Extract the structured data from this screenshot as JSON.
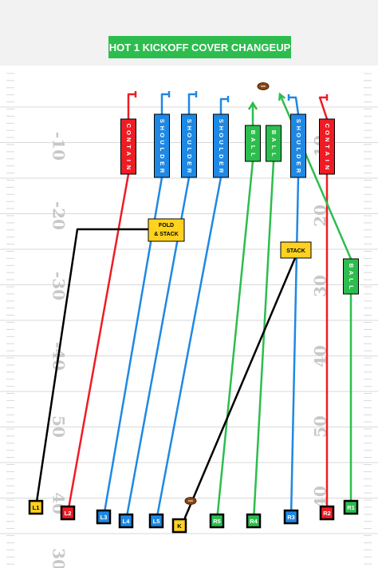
{
  "title": "HOT 1 KICKOFF COVER CHANGEUP",
  "colors": {
    "header_bg": "#f2f2f2",
    "field_bg": "#ffffff",
    "field_lines": "#d9d9d9",
    "yard_numbers": "#c8c8c8",
    "title_bg": "#2dbd4e",
    "title_text": "#ffffff",
    "red": "#ee1c24",
    "blue": "#1e88e5",
    "green": "#2dbd4e",
    "black": "#000000",
    "yellow": "#ffd21f"
  },
  "yard_numbers": {
    "left": [
      "-10",
      "-20",
      "-30",
      "-40",
      "50",
      "40",
      "30"
    ],
    "right": [
      "10",
      "20",
      "30",
      "40",
      "50",
      "40"
    ]
  },
  "footballs": [
    "top-football",
    "kicker-football"
  ],
  "players": [
    {
      "id": "L1",
      "color": "yellow"
    },
    {
      "id": "L2",
      "color": "red"
    },
    {
      "id": "L3",
      "color": "blue"
    },
    {
      "id": "L4",
      "color": "blue"
    },
    {
      "id": "L5",
      "color": "blue"
    },
    {
      "id": "K",
      "color": "yellow"
    },
    {
      "id": "R5",
      "color": "green"
    },
    {
      "id": "R4",
      "color": "green"
    },
    {
      "id": "R3",
      "color": "blue"
    },
    {
      "id": "R2",
      "color": "red"
    },
    {
      "id": "R1",
      "color": "green"
    }
  ],
  "assignments": [
    {
      "player": "L2",
      "label": "CONTAIN",
      "color": "red",
      "end": "tee"
    },
    {
      "player": "L3",
      "label": "SHOULDER",
      "color": "blue",
      "end": "tee"
    },
    {
      "player": "L4",
      "label": "SHOULDER",
      "color": "blue",
      "end": "tee"
    },
    {
      "player": "L5",
      "label": "SHOULDER",
      "color": "blue",
      "end": "tee"
    },
    {
      "player": "R5",
      "label": "BALL",
      "color": "green",
      "end": "arrow"
    },
    {
      "player": "R4",
      "label": "BALL",
      "color": "green",
      "end": "none"
    },
    {
      "player": "R3",
      "label": "SHOULDER",
      "color": "blue",
      "end": "tee"
    },
    {
      "player": "R2",
      "label": "CONTAIN",
      "color": "red",
      "end": "tee"
    },
    {
      "player": "R1",
      "label": "BALL",
      "color": "green",
      "end": "arrow"
    },
    {
      "player": "L1",
      "label": "FOLD & STACK",
      "color": "yellow",
      "end": "none"
    },
    {
      "player": "K",
      "label": "STACK",
      "color": "yellow",
      "end": "none"
    }
  ]
}
